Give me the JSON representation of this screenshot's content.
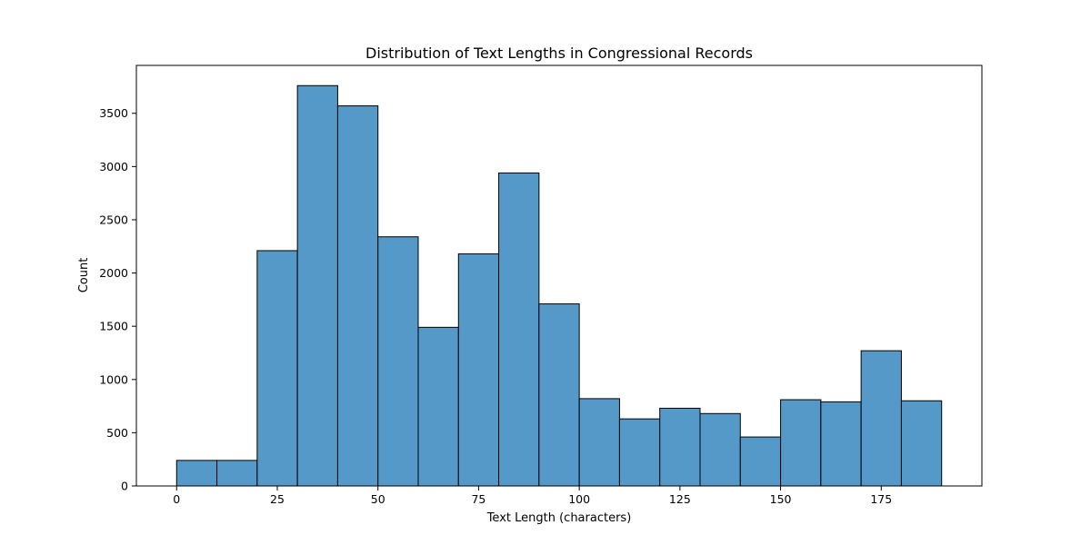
{
  "chart_data": {
    "type": "bar",
    "title": "Distribution of Text Lengths in Congressional Records",
    "xlabel": "Text Length (characters)",
    "ylabel": "Count",
    "bin_edges": [
      0,
      10,
      20,
      30,
      40,
      50,
      60,
      70,
      80,
      90,
      100,
      110,
      120,
      130,
      140,
      150,
      160,
      170,
      180,
      190
    ],
    "values": [
      240,
      240,
      2210,
      3760,
      3570,
      2340,
      1490,
      2180,
      2940,
      1710,
      820,
      630,
      730,
      680,
      460,
      810,
      790,
      1270,
      800
    ],
    "xlim": [
      -10,
      200
    ],
    "ylim": [
      0,
      3950
    ],
    "xticks": [
      0,
      25,
      50,
      75,
      100,
      125,
      150,
      175
    ],
    "yticks": [
      0,
      500,
      1000,
      1500,
      2000,
      2500,
      3000,
      3500
    ],
    "grid": false,
    "bar_color": "#5499c7",
    "edge_color": "#000000"
  }
}
